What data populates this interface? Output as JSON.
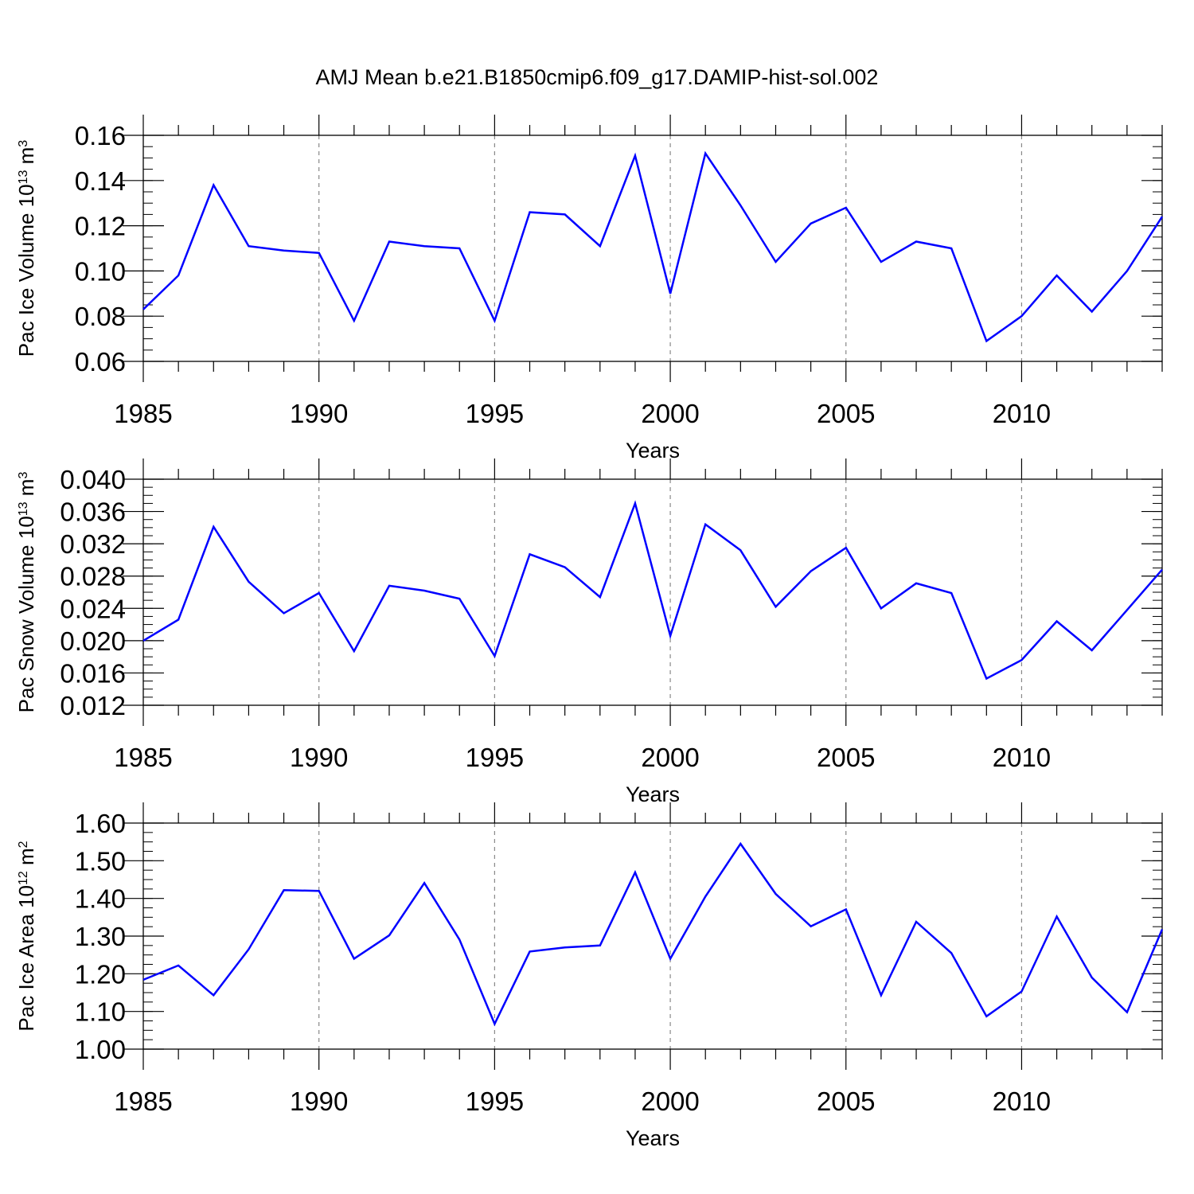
{
  "chart_data": {
    "type": "line",
    "title": "AMJ Mean b.e21.B1850cmip6.f09_g17.DAMIP-hist-sol.002",
    "line_color": "#0000ff",
    "x": [
      1985,
      1986,
      1987,
      1988,
      1989,
      1990,
      1991,
      1992,
      1993,
      1994,
      1995,
      1996,
      1997,
      1998,
      1999,
      2000,
      2001,
      2002,
      2003,
      2004,
      2005,
      2006,
      2007,
      2008,
      2009,
      2010,
      2011,
      2012,
      2013,
      2014
    ],
    "xlim": [
      1985,
      2014
    ],
    "xticks": [
      1985,
      1990,
      1995,
      2000,
      2005,
      2010
    ],
    "xtick_labels": [
      "1985",
      "1990",
      "1995",
      "2000",
      "2005",
      "2010"
    ],
    "panels": [
      {
        "xlabel": "Years",
        "ylabel": {
          "main": "Pac Ice Volume 10",
          "sup": "13",
          "unit": " m",
          "unit_sup": "3"
        },
        "ylim": [
          0.06,
          0.16
        ],
        "yticks": [
          0.06,
          0.08,
          0.1,
          0.12,
          0.14,
          0.16
        ],
        "ytick_labels": [
          "0.06",
          "0.08",
          "0.10",
          "0.12",
          "0.14",
          "0.16"
        ],
        "minor_step": 0.005,
        "values": [
          0.083,
          0.098,
          0.138,
          0.111,
          0.109,
          0.108,
          0.078,
          0.113,
          0.111,
          0.11,
          0.078,
          0.126,
          0.125,
          0.111,
          0.151,
          0.09,
          0.152,
          0.129,
          0.104,
          0.121,
          0.128,
          0.104,
          0.113,
          0.11,
          0.069,
          0.08,
          0.098,
          0.082,
          0.1,
          0.124
        ]
      },
      {
        "xlabel": "Years",
        "ylabel": {
          "main": "Pac Snow Volume 10",
          "sup": "13",
          "unit": " m",
          "unit_sup": "3"
        },
        "ylim": [
          0.012,
          0.04
        ],
        "yticks": [
          0.012,
          0.016,
          0.02,
          0.024,
          0.028,
          0.032,
          0.036,
          0.04
        ],
        "ytick_labels": [
          "0.012",
          "0.016",
          "0.020",
          "0.024",
          "0.028",
          "0.032",
          "0.036",
          "0.040"
        ],
        "minor_step": 0.001,
        "values": [
          0.02,
          0.0226,
          0.0341,
          0.0273,
          0.0234,
          0.0259,
          0.0187,
          0.0268,
          0.0262,
          0.0252,
          0.0181,
          0.0307,
          0.0291,
          0.0254,
          0.037,
          0.0206,
          0.0344,
          0.0312,
          0.0242,
          0.0286,
          0.0315,
          0.024,
          0.0271,
          0.0259,
          0.0153,
          0.0176,
          0.0224,
          0.0188,
          0.0238,
          0.0288
        ]
      },
      {
        "xlabel": "Years",
        "ylabel": {
          "main": "Pac Ice Area 10",
          "sup": "12",
          "unit": " m",
          "unit_sup": "2"
        },
        "ylim": [
          1.0,
          1.6
        ],
        "yticks": [
          1.0,
          1.1,
          1.2,
          1.3,
          1.4,
          1.5,
          1.6
        ],
        "ytick_labels": [
          "1.00",
          "1.10",
          "1.20",
          "1.30",
          "1.40",
          "1.50",
          "1.60"
        ],
        "minor_step": 0.025,
        "values": [
          1.184,
          1.222,
          1.143,
          1.265,
          1.422,
          1.42,
          1.24,
          1.302,
          1.441,
          1.291,
          1.067,
          1.259,
          1.27,
          1.275,
          1.469,
          1.24,
          1.405,
          1.545,
          1.412,
          1.326,
          1.371,
          1.143,
          1.338,
          1.255,
          1.087,
          1.153,
          1.352,
          1.19,
          1.098,
          1.318
        ]
      }
    ]
  }
}
